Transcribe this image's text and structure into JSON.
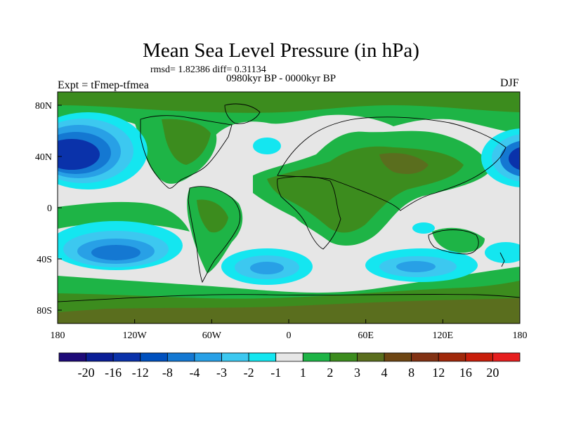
{
  "header": {
    "title": "Mean Sea Level Pressure (in hPa)",
    "stats": "rmsd= 1.82386 diff= 0.31134",
    "subtitle": "0980kyr BP - 0000kyr BP",
    "experiment": "Expt = tFmep-tfmea",
    "season": "DJF"
  },
  "axes": {
    "x_ticks": [
      "180",
      "120W",
      "60W",
      "0",
      "60E",
      "120E",
      "180"
    ],
    "y_ticks": [
      "80N",
      "40N",
      "0",
      "40S",
      "80S"
    ]
  },
  "colorbar": {
    "labels": [
      "-20",
      "-16",
      "-12",
      "-8",
      "-4",
      "-3",
      "-2",
      "-1",
      "1",
      "2",
      "3",
      "4",
      "8",
      "12",
      "16",
      "20"
    ],
    "colors": [
      "#1e0a78",
      "#0a1e96",
      "#0a32aa",
      "#0050be",
      "#1478d2",
      "#28a0e6",
      "#3cc8f0",
      "#14e6f0",
      "#e6e6e6",
      "#1eb446",
      "#3c8c1e",
      "#5a6e1e",
      "#6e4614",
      "#823214",
      "#a0280a",
      "#c81e0a",
      "#e61e1e"
    ]
  },
  "palette": {
    "neutral": "#e6e6e6",
    "pos1": "#1eb446",
    "pos2": "#3c8c1e",
    "pos3": "#5a6e1e",
    "neg1": "#14e6f0",
    "neg2": "#3cc8f0",
    "neg3": "#28a0e6",
    "neg4": "#1478d2",
    "neg5": "#0a32aa"
  }
}
